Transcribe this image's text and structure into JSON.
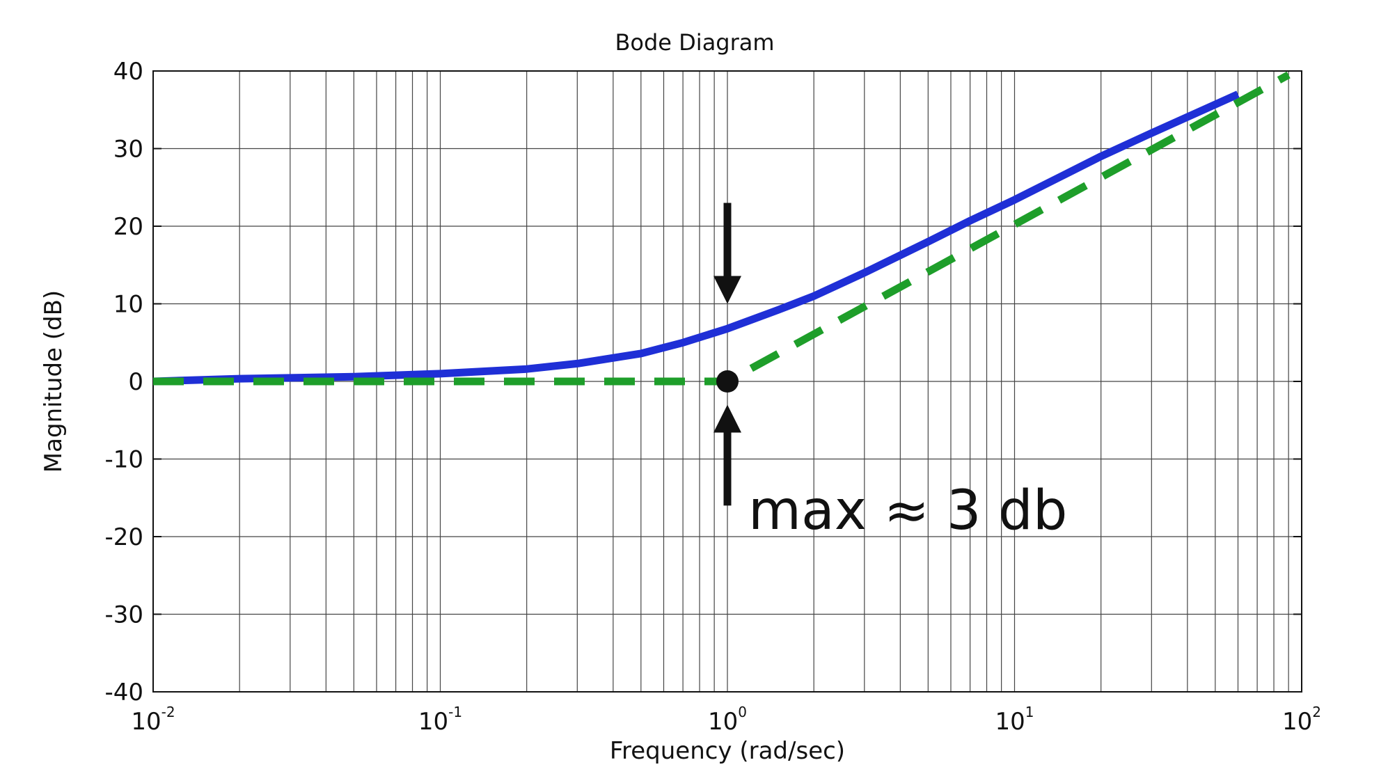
{
  "chart_data": {
    "type": "line",
    "title": "Bode Diagram",
    "xlabel": "Frequency (rad/sec)",
    "ylabel": "Magnitude (dB)",
    "xscale": "log",
    "xlim": [
      0.01,
      100
    ],
    "ylim": [
      -40,
      40
    ],
    "grid": true,
    "x_ticks": [
      {
        "base": "10",
        "exp": "-2",
        "value": 0.01
      },
      {
        "base": "10",
        "exp": "-1",
        "value": 0.1
      },
      {
        "base": "10",
        "exp": "0",
        "value": 1
      },
      {
        "base": "10",
        "exp": "1",
        "value": 10
      },
      {
        "base": "10",
        "exp": "2",
        "value": 100
      }
    ],
    "y_ticks": [
      "-40",
      "-30",
      "-20",
      "-10",
      "0",
      "10",
      "20",
      "30",
      "40"
    ],
    "series": [
      {
        "style": "solid",
        "color": "#1f2fd6",
        "x": [
          0.01,
          0.02,
          0.05,
          0.1,
          0.2,
          0.3,
          0.5,
          0.7,
          1,
          1.5,
          2,
          3,
          5,
          7,
          10,
          20,
          30,
          60
        ],
        "y": [
          0.0,
          0.35,
          0.6,
          1.0,
          1.6,
          2.3,
          3.6,
          5.0,
          6.8,
          9.2,
          11.0,
          14.0,
          18.0,
          20.7,
          23.4,
          29.0,
          32.0,
          37.0
        ]
      },
      {
        "style": "dashed",
        "color": "#1e9e2a",
        "x": [
          0.01,
          1,
          90
        ],
        "y": [
          0,
          0,
          39.5
        ]
      }
    ],
    "annotations": [
      {
        "text": "max ≈ 3 db",
        "x": 1.0,
        "y": -16.5
      },
      {
        "type": "marker",
        "x": 1,
        "y": 0
      },
      {
        "type": "arrow",
        "direction": "down",
        "x": 1,
        "y_from": 23,
        "y_to": 10
      },
      {
        "type": "arrow",
        "direction": "up",
        "x": 1,
        "y_from": -16,
        "y_to": -3
      }
    ]
  }
}
